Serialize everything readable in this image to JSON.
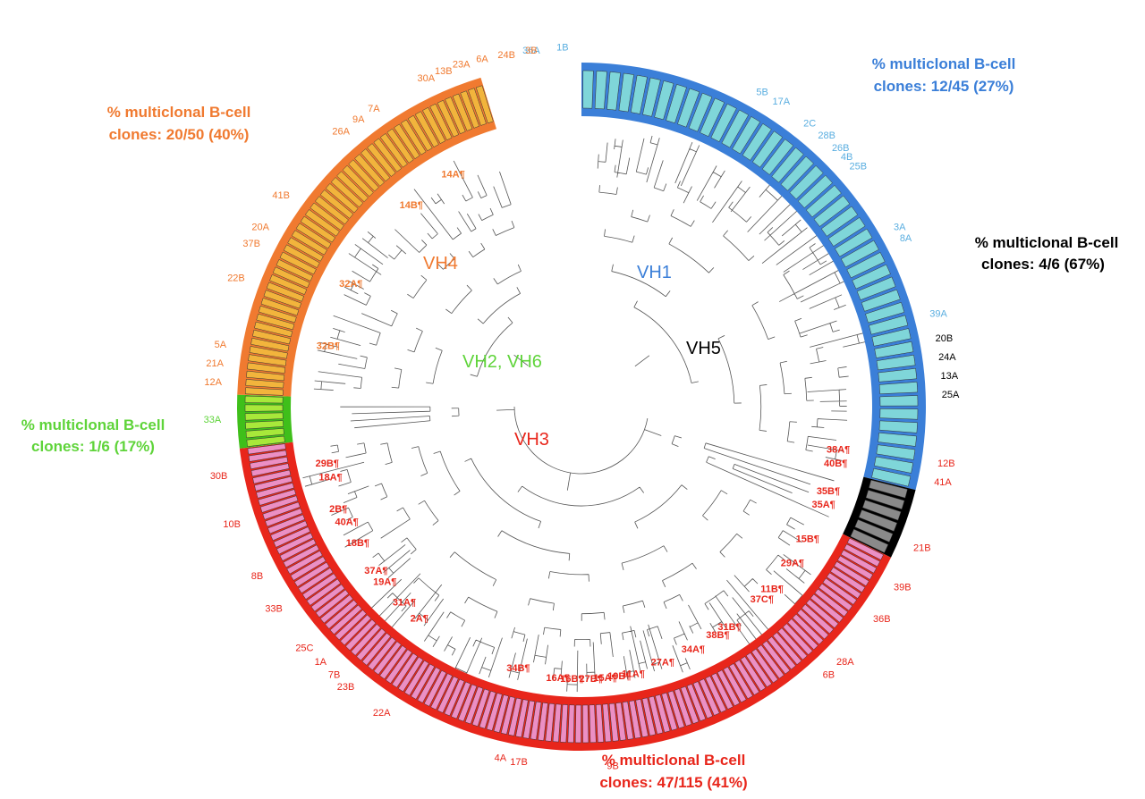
{
  "colors": {
    "vh1_band": "#3b7fd8",
    "vh1_fill": "#7fd6d9",
    "vh1_text": "#3b7fd8",
    "vh1_label": "#5aaee0",
    "vh5_band": "#000000",
    "vh5_fill": "#8a8a8a",
    "vh5_text": "#000000",
    "vh3_band": "#e8261b",
    "vh3_fill": "#ec8fc4",
    "vh3_text": "#e8261b",
    "vh2_band": "#3fbf1a",
    "vh2_fill": "#a8e83a",
    "vh2_text": "#5fd43a",
    "vh4_band": "#f07a30",
    "vh4_fill": "#f2b43c",
    "vh4_text": "#f07a30",
    "branch": "#555555"
  },
  "families": [
    {
      "id": "vh1",
      "name": "VH1",
      "start": 0,
      "end": 104,
      "n": 45,
      "summary_line1": "% multiclonal B-cell",
      "summary_line2": "clones: 12/45 (27%)"
    },
    {
      "id": "vh5",
      "name": "VH5",
      "start": 104,
      "end": 116,
      "n": 6,
      "summary_line1": "% multiclonal B-cell",
      "summary_line2": "clones: 4/6 (67%)"
    },
    {
      "id": "vh3",
      "name": "VH3",
      "start": 116,
      "end": 263,
      "n": 115,
      "summary_line1": "% multiclonal B-cell",
      "summary_line2": "clones: 47/115 (41%)"
    },
    {
      "id": "vh2",
      "name": "VH2, VH6",
      "start": 263,
      "end": 272,
      "n": 6,
      "summary_line1": "% multiclonal B-cell",
      "summary_line2": "clones: 1/6 (17%)"
    },
    {
      "id": "vh4",
      "name": "VH4",
      "start": 272,
      "end": 343,
      "n": 50,
      "summary_line1": "% multiclonal B-cell",
      "summary_line2": "clones: 20/50 (40%)"
    }
  ],
  "outer_labels": [
    {
      "text": "36A",
      "fam": "vh1",
      "a": 352
    },
    {
      "text": "1B",
      "fam": "vh1",
      "a": 357
    },
    {
      "text": "5B",
      "fam": "vh1",
      "a": 29
    },
    {
      "text": "17A",
      "fam": "vh1",
      "a": 32
    },
    {
      "text": "2C",
      "fam": "vh1",
      "a": 38
    },
    {
      "text": "28B",
      "fam": "vh1",
      "a": 41
    },
    {
      "text": "26B",
      "fam": "vh1",
      "a": 44
    },
    {
      "text": "4B",
      "fam": "vh1",
      "a": 46
    },
    {
      "text": "25B",
      "fam": "vh1",
      "a": 48
    },
    {
      "text": "3A",
      "fam": "vh1",
      "a": 60
    },
    {
      "text": "8A",
      "fam": "vh1",
      "a": 62
    },
    {
      "text": "39A",
      "fam": "vh1",
      "a": 75
    },
    {
      "text": "20B",
      "fam": "vh5",
      "a": 79
    },
    {
      "text": "24A",
      "fam": "vh5",
      "a": 82
    },
    {
      "text": "13A",
      "fam": "vh5",
      "a": 85
    },
    {
      "text": "25A",
      "fam": "vh5",
      "a": 88
    },
    {
      "text": "12B",
      "fam": "vh3",
      "a": 99
    },
    {
      "text": "41A",
      "fam": "vh3",
      "a": 102
    },
    {
      "text": "21B",
      "fam": "vh3",
      "a": 113
    },
    {
      "text": "39B",
      "fam": "vh3",
      "a": 120
    },
    {
      "text": "36B",
      "fam": "vh3",
      "a": 126
    },
    {
      "text": "28A",
      "fam": "vh3",
      "a": 135
    },
    {
      "text": "6B",
      "fam": "vh3",
      "a": 138
    },
    {
      "text": "9B",
      "fam": "vh3",
      "a": 175
    },
    {
      "text": "17B",
      "fam": "vh3",
      "a": 190
    },
    {
      "text": "4A",
      "fam": "vh3",
      "a": 193
    },
    {
      "text": "22A",
      "fam": "vh3",
      "a": 212
    },
    {
      "text": "23B",
      "fam": "vh3",
      "a": 219
    },
    {
      "text": "7B",
      "fam": "vh3",
      "a": 222
    },
    {
      "text": "1A",
      "fam": "vh3",
      "a": 225
    },
    {
      "text": "25C",
      "fam": "vh3",
      "a": 228
    },
    {
      "text": "33B",
      "fam": "vh3",
      "a": 236
    },
    {
      "text": "8B",
      "fam": "vh3",
      "a": 242
    },
    {
      "text": "10B",
      "fam": "vh3",
      "a": 251
    },
    {
      "text": "30B",
      "fam": "vh3",
      "a": 259
    },
    {
      "text": "33A",
      "fam": "vh2",
      "a": 268
    },
    {
      "text": "12A",
      "fam": "vh4",
      "a": 274
    },
    {
      "text": "21A",
      "fam": "vh4",
      "a": 277
    },
    {
      "text": "5A",
      "fam": "vh4",
      "a": 280
    },
    {
      "text": "22B",
      "fam": "vh4",
      "a": 291
    },
    {
      "text": "37B",
      "fam": "vh4",
      "a": 297
    },
    {
      "text": "20A",
      "fam": "vh4",
      "a": 300
    },
    {
      "text": "41B",
      "fam": "vh4",
      "a": 306
    },
    {
      "text": "26A",
      "fam": "vh4",
      "a": 320
    },
    {
      "text": "9A",
      "fam": "vh4",
      "a": 323
    },
    {
      "text": "7A",
      "fam": "vh4",
      "a": 326
    },
    {
      "text": "30A",
      "fam": "vh4",
      "a": 336
    },
    {
      "text": "13B",
      "fam": "vh4",
      "a": 339
    },
    {
      "text": "23A",
      "fam": "vh4",
      "a": 342
    },
    {
      "text": "6A",
      "fam": "vh4",
      "a": 345
    },
    {
      "text": "24B",
      "fam": "vh4",
      "a": 348
    },
    {
      "text": "3B",
      "fam": "vh4",
      "a": 352
    }
  ],
  "inner_labels": [
    {
      "text": "14A¶",
      "fam": "vh4",
      "a": 329
    },
    {
      "text": "14B¶",
      "fam": "vh4",
      "a": 318
    },
    {
      "text": "32A¶",
      "fam": "vh4",
      "a": 297
    },
    {
      "text": "32B¶",
      "fam": "vh4",
      "a": 283
    },
    {
      "text": "38A¶",
      "fam": "vh3",
      "a": 99
    },
    {
      "text": "40B¶",
      "fam": "vh3",
      "a": 102
    },
    {
      "text": "35B¶",
      "fam": "vh3",
      "a": 108
    },
    {
      "text": "35A¶",
      "fam": "vh3",
      "a": 111
    },
    {
      "text": "15B¶",
      "fam": "vh3",
      "a": 119
    },
    {
      "text": "29A¶",
      "fam": "vh3",
      "a": 125
    },
    {
      "text": "11B¶",
      "fam": "vh3",
      "a": 132
    },
    {
      "text": "37C¶",
      "fam": "vh3",
      "a": 135
    },
    {
      "text": "31B¶",
      "fam": "vh3",
      "a": 144
    },
    {
      "text": "38B¶",
      "fam": "vh3",
      "a": 147
    },
    {
      "text": "34A¶",
      "fam": "vh3",
      "a": 153
    },
    {
      "text": "27A¶",
      "fam": "vh3",
      "a": 160
    },
    {
      "text": "11A¶",
      "fam": "vh3",
      "a": 169
    },
    {
      "text": "19B¶",
      "fam": "vh3",
      "a": 172
    },
    {
      "text": "15A¶",
      "fam": "vh3",
      "a": 175
    },
    {
      "text": "27B¶",
      "fam": "vh3",
      "a": 178
    },
    {
      "text": "16B¶",
      "fam": "vh3",
      "a": 182
    },
    {
      "text": "16A¶",
      "fam": "vh3",
      "a": 185
    },
    {
      "text": "34B¶",
      "fam": "vh3",
      "a": 196
    },
    {
      "text": "2A¶",
      "fam": "vh3",
      "a": 219
    },
    {
      "text": "31A¶",
      "fam": "vh3",
      "a": 224
    },
    {
      "text": "19A¶",
      "fam": "vh3",
      "a": 230
    },
    {
      "text": "37A¶",
      "fam": "vh3",
      "a": 233
    },
    {
      "text": "18B¶",
      "fam": "vh3",
      "a": 240
    },
    {
      "text": "40A¶",
      "fam": "vh3",
      "a": 245
    },
    {
      "text": "2B¶",
      "fam": "vh3",
      "a": 248
    },
    {
      "text": "18A¶",
      "fam": "vh3",
      "a": 255
    },
    {
      "text": "29B¶",
      "fam": "vh3",
      "a": 258
    }
  ]
}
